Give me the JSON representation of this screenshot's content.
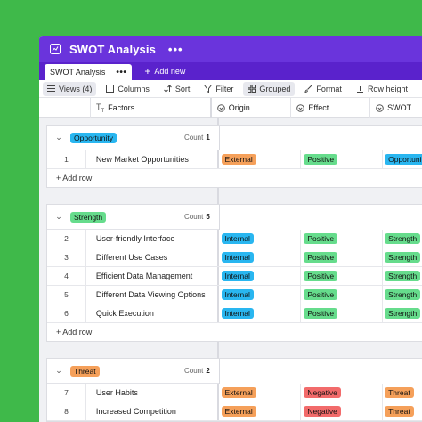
{
  "window": {
    "title": "SWOT Analysis",
    "menu": "•••"
  },
  "tabs": {
    "active": "SWOT Analysis",
    "active_menu": "•••",
    "add_view": "Add new"
  },
  "toolbar": {
    "views": "Views (4)",
    "columns": "Columns",
    "sort": "Sort",
    "filter": "Filter",
    "grouped": "Grouped",
    "format": "Format",
    "row_height": "Row height"
  },
  "columns": [
    "Factors",
    "Origin",
    "Effect",
    "SWOT"
  ],
  "add_row_label": "+ Add row",
  "colors": {
    "accent": "#6a34dc",
    "background": "#3fb94a",
    "opportunity": "#29b6f0",
    "strength": "#66dc8c",
    "threat": "#f5a05a",
    "external": "#f5a05a",
    "internal": "#29b6f0",
    "positive": "#66dc8c",
    "negative": "#f26b6b"
  },
  "groups": [
    {
      "name": "Opportunity",
      "count_label": "Count",
      "count": "1",
      "rows": [
        {
          "num": "1",
          "factor": "New Market Opportunities",
          "origin": "External",
          "effect": "Positive",
          "swot": "Opportunity"
        }
      ]
    },
    {
      "name": "Strength",
      "count_label": "Count",
      "count": "5",
      "rows": [
        {
          "num": "2",
          "factor": "User-friendly Interface",
          "origin": "Internal",
          "effect": "Positive",
          "swot": "Strength"
        },
        {
          "num": "3",
          "factor": "Different Use Cases",
          "origin": "Internal",
          "effect": "Positive",
          "swot": "Strength"
        },
        {
          "num": "4",
          "factor": "Efficient Data Management",
          "origin": "Internal",
          "effect": "Positive",
          "swot": "Strength"
        },
        {
          "num": "5",
          "factor": "Different Data Viewing Options",
          "origin": "Internal",
          "effect": "Positive",
          "swot": "Strength"
        },
        {
          "num": "6",
          "factor": "Quick Execution",
          "origin": "Internal",
          "effect": "Positive",
          "swot": "Strength"
        }
      ]
    },
    {
      "name": "Threat",
      "count_label": "Count",
      "count": "2",
      "rows": [
        {
          "num": "7",
          "factor": "User Habits",
          "origin": "External",
          "effect": "Negative",
          "swot": "Threat"
        },
        {
          "num": "8",
          "factor": "Increased Competition",
          "origin": "External",
          "effect": "Negative",
          "swot": "Threat"
        }
      ]
    }
  ]
}
